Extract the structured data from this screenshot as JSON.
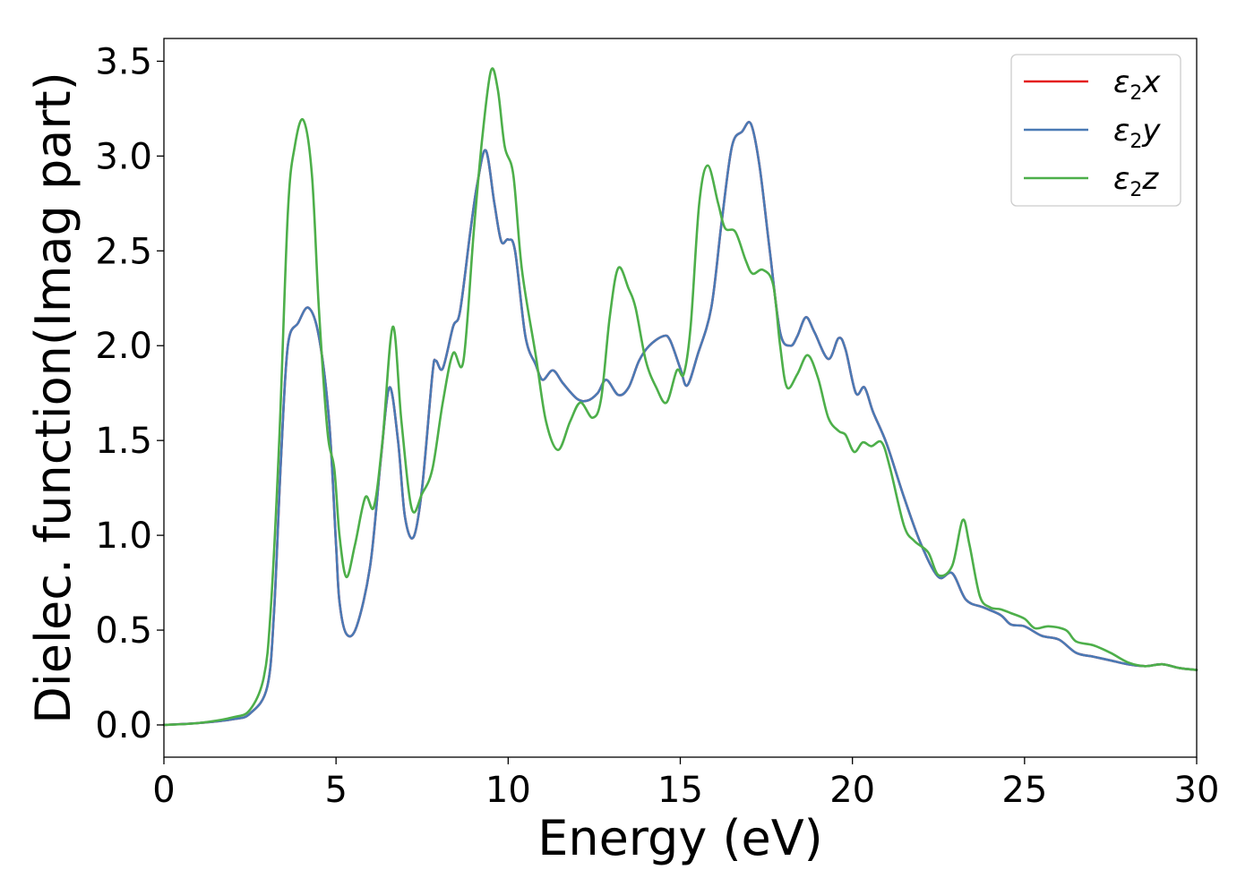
{
  "chart_data": {
    "type": "line",
    "title": "",
    "xlabel": "Energy (eV)",
    "ylabel": "Dielec. function(Imag part)",
    "xlim": [
      0,
      30
    ],
    "ylim": [
      -0.17,
      3.62
    ],
    "xticks": [
      0,
      5,
      10,
      15,
      20,
      25,
      30
    ],
    "xtick_labels": [
      "0",
      "5",
      "10",
      "15",
      "20",
      "25",
      "30"
    ],
    "yticks": [
      0.0,
      0.5,
      1.0,
      1.5,
      2.0,
      2.5,
      3.0,
      3.5
    ],
    "ytick_labels": [
      "0.0",
      "0.5",
      "1.0",
      "1.5",
      "2.0",
      "2.5",
      "3.0",
      "3.5"
    ],
    "grid": false,
    "legend_position": "top-right",
    "series": [
      {
        "name": "ε₂x",
        "legend_base": "ε",
        "legend_sub": "2",
        "legend_suffix": "x",
        "color": "#e41a1c",
        "points": [
          [
            0,
            0
          ],
          [
            1,
            0.01
          ],
          [
            2,
            0.03
          ],
          [
            2.5,
            0.06
          ],
          [
            3,
            0.2
          ],
          [
            3.2,
            0.6
          ],
          [
            3.4,
            1.4
          ],
          [
            3.6,
            2.0
          ],
          [
            3.9,
            2.12
          ],
          [
            4.2,
            2.2
          ],
          [
            4.5,
            2.05
          ],
          [
            4.8,
            1.6
          ],
          [
            5.0,
            0.95
          ],
          [
            5.1,
            0.65
          ],
          [
            5.3,
            0.48
          ],
          [
            5.6,
            0.52
          ],
          [
            6.0,
            0.85
          ],
          [
            6.3,
            1.4
          ],
          [
            6.55,
            1.78
          ],
          [
            6.8,
            1.5
          ],
          [
            7.0,
            1.1
          ],
          [
            7.25,
            0.99
          ],
          [
            7.5,
            1.25
          ],
          [
            7.8,
            1.85
          ],
          [
            7.9,
            1.92
          ],
          [
            8.1,
            1.88
          ],
          [
            8.4,
            2.1
          ],
          [
            8.6,
            2.18
          ],
          [
            8.9,
            2.6
          ],
          [
            9.1,
            2.85
          ],
          [
            9.35,
            3.03
          ],
          [
            9.6,
            2.75
          ],
          [
            9.8,
            2.55
          ],
          [
            10.0,
            2.56
          ],
          [
            10.2,
            2.5
          ],
          [
            10.5,
            2.05
          ],
          [
            10.8,
            1.9
          ],
          [
            11.0,
            1.82
          ],
          [
            11.3,
            1.87
          ],
          [
            11.6,
            1.8
          ],
          [
            12.0,
            1.72
          ],
          [
            12.3,
            1.71
          ],
          [
            12.6,
            1.75
          ],
          [
            12.85,
            1.82
          ],
          [
            13.2,
            1.74
          ],
          [
            13.5,
            1.78
          ],
          [
            13.8,
            1.92
          ],
          [
            14.1,
            2.0
          ],
          [
            14.5,
            2.05
          ],
          [
            14.7,
            2.03
          ],
          [
            15.0,
            1.88
          ],
          [
            15.2,
            1.79
          ],
          [
            15.5,
            1.95
          ],
          [
            15.9,
            2.2
          ],
          [
            16.2,
            2.65
          ],
          [
            16.5,
            3.05
          ],
          [
            16.8,
            3.13
          ],
          [
            17.05,
            3.17
          ],
          [
            17.3,
            2.95
          ],
          [
            17.6,
            2.5
          ],
          [
            17.9,
            2.07
          ],
          [
            18.2,
            2.0
          ],
          [
            18.4,
            2.05
          ],
          [
            18.65,
            2.15
          ],
          [
            18.9,
            2.07
          ],
          [
            19.3,
            1.93
          ],
          [
            19.6,
            2.04
          ],
          [
            19.8,
            1.98
          ],
          [
            20.1,
            1.75
          ],
          [
            20.35,
            1.78
          ],
          [
            20.6,
            1.65
          ],
          [
            21.0,
            1.48
          ],
          [
            21.5,
            1.2
          ],
          [
            22.0,
            0.95
          ],
          [
            22.5,
            0.78
          ],
          [
            22.9,
            0.8
          ],
          [
            23.3,
            0.66
          ],
          [
            23.8,
            0.62
          ],
          [
            24.3,
            0.58
          ],
          [
            24.6,
            0.53
          ],
          [
            25.0,
            0.52
          ],
          [
            25.5,
            0.47
          ],
          [
            26.0,
            0.45
          ],
          [
            26.5,
            0.38
          ],
          [
            27.0,
            0.36
          ],
          [
            27.5,
            0.34
          ],
          [
            28.0,
            0.32
          ],
          [
            28.5,
            0.31
          ],
          [
            29.0,
            0.32
          ],
          [
            29.5,
            0.3
          ],
          [
            30,
            0.29
          ]
        ]
      },
      {
        "name": "ε₂y",
        "legend_base": "ε",
        "legend_sub": "2",
        "legend_suffix": "y",
        "color": "#4a7ab5",
        "points": [
          [
            0,
            0
          ],
          [
            1,
            0.01
          ],
          [
            2,
            0.03
          ],
          [
            2.5,
            0.06
          ],
          [
            3,
            0.2
          ],
          [
            3.2,
            0.6
          ],
          [
            3.4,
            1.4
          ],
          [
            3.6,
            2.0
          ],
          [
            3.9,
            2.12
          ],
          [
            4.2,
            2.2
          ],
          [
            4.5,
            2.05
          ],
          [
            4.8,
            1.6
          ],
          [
            5.0,
            0.95
          ],
          [
            5.1,
            0.65
          ],
          [
            5.3,
            0.48
          ],
          [
            5.6,
            0.52
          ],
          [
            6.0,
            0.85
          ],
          [
            6.3,
            1.4
          ],
          [
            6.55,
            1.78
          ],
          [
            6.8,
            1.5
          ],
          [
            7.0,
            1.1
          ],
          [
            7.25,
            0.99
          ],
          [
            7.5,
            1.25
          ],
          [
            7.8,
            1.85
          ],
          [
            7.9,
            1.92
          ],
          [
            8.1,
            1.88
          ],
          [
            8.4,
            2.1
          ],
          [
            8.6,
            2.18
          ],
          [
            8.9,
            2.6
          ],
          [
            9.1,
            2.85
          ],
          [
            9.35,
            3.03
          ],
          [
            9.6,
            2.75
          ],
          [
            9.8,
            2.55
          ],
          [
            10.0,
            2.56
          ],
          [
            10.2,
            2.5
          ],
          [
            10.5,
            2.05
          ],
          [
            10.8,
            1.9
          ],
          [
            11.0,
            1.82
          ],
          [
            11.3,
            1.87
          ],
          [
            11.6,
            1.8
          ],
          [
            12.0,
            1.72
          ],
          [
            12.3,
            1.71
          ],
          [
            12.6,
            1.75
          ],
          [
            12.85,
            1.82
          ],
          [
            13.2,
            1.74
          ],
          [
            13.5,
            1.78
          ],
          [
            13.8,
            1.92
          ],
          [
            14.1,
            2.0
          ],
          [
            14.5,
            2.05
          ],
          [
            14.7,
            2.03
          ],
          [
            15.0,
            1.88
          ],
          [
            15.2,
            1.79
          ],
          [
            15.5,
            1.95
          ],
          [
            15.9,
            2.2
          ],
          [
            16.2,
            2.65
          ],
          [
            16.5,
            3.05
          ],
          [
            16.8,
            3.13
          ],
          [
            17.05,
            3.17
          ],
          [
            17.3,
            2.95
          ],
          [
            17.6,
            2.5
          ],
          [
            17.9,
            2.07
          ],
          [
            18.2,
            2.0
          ],
          [
            18.4,
            2.05
          ],
          [
            18.65,
            2.15
          ],
          [
            18.9,
            2.07
          ],
          [
            19.3,
            1.93
          ],
          [
            19.6,
            2.04
          ],
          [
            19.8,
            1.98
          ],
          [
            20.1,
            1.75
          ],
          [
            20.35,
            1.78
          ],
          [
            20.6,
            1.65
          ],
          [
            21.0,
            1.48
          ],
          [
            21.5,
            1.2
          ],
          [
            22.0,
            0.95
          ],
          [
            22.5,
            0.78
          ],
          [
            22.9,
            0.8
          ],
          [
            23.3,
            0.66
          ],
          [
            23.8,
            0.62
          ],
          [
            24.3,
            0.58
          ],
          [
            24.6,
            0.53
          ],
          [
            25.0,
            0.52
          ],
          [
            25.5,
            0.47
          ],
          [
            26.0,
            0.45
          ],
          [
            26.5,
            0.38
          ],
          [
            27.0,
            0.36
          ],
          [
            27.5,
            0.34
          ],
          [
            28.0,
            0.32
          ],
          [
            28.5,
            0.31
          ],
          [
            29.0,
            0.32
          ],
          [
            29.5,
            0.3
          ],
          [
            30,
            0.29
          ]
        ]
      },
      {
        "name": "ε₂z",
        "legend_base": "ε",
        "legend_sub": "2",
        "legend_suffix": "z",
        "color": "#4daf4a",
        "points": [
          [
            0,
            0
          ],
          [
            1,
            0.01
          ],
          [
            2,
            0.04
          ],
          [
            2.5,
            0.08
          ],
          [
            2.9,
            0.25
          ],
          [
            3.1,
            0.6
          ],
          [
            3.35,
            1.5
          ],
          [
            3.6,
            2.7
          ],
          [
            3.8,
            3.05
          ],
          [
            4.05,
            3.19
          ],
          [
            4.3,
            2.9
          ],
          [
            4.5,
            2.2
          ],
          [
            4.75,
            1.55
          ],
          [
            4.95,
            1.35
          ],
          [
            5.1,
            1.0
          ],
          [
            5.3,
            0.78
          ],
          [
            5.55,
            0.95
          ],
          [
            5.85,
            1.2
          ],
          [
            6.1,
            1.15
          ],
          [
            6.35,
            1.5
          ],
          [
            6.65,
            2.1
          ],
          [
            6.9,
            1.6
          ],
          [
            7.2,
            1.14
          ],
          [
            7.5,
            1.22
          ],
          [
            7.8,
            1.35
          ],
          [
            8.1,
            1.7
          ],
          [
            8.4,
            1.96
          ],
          [
            8.7,
            1.92
          ],
          [
            9.0,
            2.6
          ],
          [
            9.25,
            3.1
          ],
          [
            9.5,
            3.45
          ],
          [
            9.7,
            3.35
          ],
          [
            9.9,
            3.05
          ],
          [
            10.15,
            2.9
          ],
          [
            10.4,
            2.4
          ],
          [
            10.8,
            1.95
          ],
          [
            11.1,
            1.6
          ],
          [
            11.45,
            1.45
          ],
          [
            11.8,
            1.6
          ],
          [
            12.1,
            1.7
          ],
          [
            12.45,
            1.62
          ],
          [
            12.7,
            1.72
          ],
          [
            12.95,
            2.15
          ],
          [
            13.2,
            2.41
          ],
          [
            13.5,
            2.3
          ],
          [
            13.7,
            2.2
          ],
          [
            14.0,
            1.92
          ],
          [
            14.3,
            1.78
          ],
          [
            14.6,
            1.7
          ],
          [
            14.9,
            1.87
          ],
          [
            15.1,
            1.85
          ],
          [
            15.3,
            2.1
          ],
          [
            15.55,
            2.75
          ],
          [
            15.8,
            2.95
          ],
          [
            16.1,
            2.75
          ],
          [
            16.3,
            2.62
          ],
          [
            16.6,
            2.6
          ],
          [
            16.9,
            2.45
          ],
          [
            17.1,
            2.38
          ],
          [
            17.4,
            2.4
          ],
          [
            17.7,
            2.32
          ],
          [
            17.9,
            2.0
          ],
          [
            18.1,
            1.78
          ],
          [
            18.4,
            1.85
          ],
          [
            18.7,
            1.95
          ],
          [
            19.0,
            1.83
          ],
          [
            19.3,
            1.62
          ],
          [
            19.6,
            1.55
          ],
          [
            19.8,
            1.53
          ],
          [
            20.05,
            1.44
          ],
          [
            20.3,
            1.49
          ],
          [
            20.55,
            1.47
          ],
          [
            20.85,
            1.49
          ],
          [
            21.1,
            1.35
          ],
          [
            21.5,
            1.05
          ],
          [
            21.8,
            0.97
          ],
          [
            22.2,
            0.91
          ],
          [
            22.5,
            0.79
          ],
          [
            22.9,
            0.84
          ],
          [
            23.2,
            1.08
          ],
          [
            23.4,
            0.95
          ],
          [
            23.7,
            0.68
          ],
          [
            24.0,
            0.62
          ],
          [
            24.3,
            0.61
          ],
          [
            24.6,
            0.59
          ],
          [
            25.0,
            0.56
          ],
          [
            25.3,
            0.51
          ],
          [
            25.7,
            0.52
          ],
          [
            26.2,
            0.5
          ],
          [
            26.5,
            0.44
          ],
          [
            27.0,
            0.42
          ],
          [
            27.5,
            0.38
          ],
          [
            28.0,
            0.33
          ],
          [
            28.5,
            0.31
          ],
          [
            29.0,
            0.32
          ],
          [
            29.5,
            0.3
          ],
          [
            30,
            0.29
          ]
        ]
      }
    ]
  }
}
